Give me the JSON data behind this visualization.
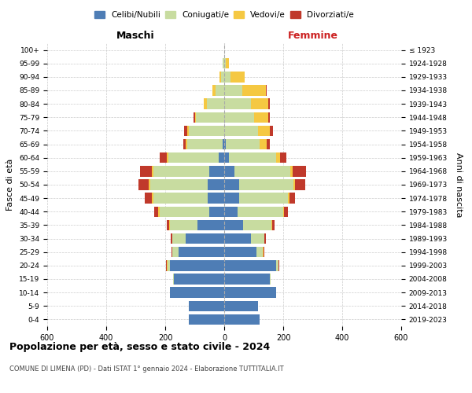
{
  "age_groups": [
    "0-4",
    "5-9",
    "10-14",
    "15-19",
    "20-24",
    "25-29",
    "30-34",
    "35-39",
    "40-44",
    "45-49",
    "50-54",
    "55-59",
    "60-64",
    "65-69",
    "70-74",
    "75-79",
    "80-84",
    "85-89",
    "90-94",
    "95-99",
    "100+"
  ],
  "birth_years": [
    "2019-2023",
    "2014-2018",
    "2009-2013",
    "2004-2008",
    "1999-2003",
    "1994-1998",
    "1989-1993",
    "1984-1988",
    "1979-1983",
    "1974-1978",
    "1969-1973",
    "1964-1968",
    "1959-1963",
    "1954-1958",
    "1949-1953",
    "1944-1948",
    "1939-1943",
    "1934-1938",
    "1929-1933",
    "1924-1928",
    "≤ 1923"
  ],
  "males": {
    "celibi": [
      120,
      120,
      185,
      170,
      185,
      155,
      130,
      90,
      50,
      55,
      55,
      50,
      20,
      5,
      0,
      0,
      0,
      0,
      0,
      0,
      0
    ],
    "coniugati": [
      0,
      0,
      0,
      3,
      8,
      20,
      45,
      95,
      170,
      185,
      195,
      190,
      170,
      120,
      120,
      95,
      60,
      30,
      10,
      5,
      0
    ],
    "vedovi": [
      0,
      0,
      0,
      0,
      2,
      2,
      2,
      3,
      3,
      5,
      5,
      5,
      5,
      5,
      5,
      5,
      10,
      10,
      5,
      0,
      0
    ],
    "divorziati": [
      0,
      0,
      0,
      0,
      2,
      3,
      5,
      8,
      15,
      25,
      35,
      40,
      25,
      10,
      10,
      5,
      0,
      0,
      0,
      0,
      0
    ]
  },
  "females": {
    "nubili": [
      120,
      115,
      175,
      155,
      175,
      110,
      90,
      65,
      45,
      50,
      50,
      35,
      15,
      5,
      0,
      0,
      0,
      0,
      0,
      0,
      0
    ],
    "coniugate": [
      0,
      0,
      0,
      3,
      8,
      20,
      45,
      95,
      155,
      165,
      185,
      190,
      160,
      115,
      115,
      100,
      90,
      60,
      20,
      5,
      0
    ],
    "vedove": [
      0,
      0,
      0,
      0,
      2,
      2,
      2,
      2,
      3,
      5,
      5,
      8,
      15,
      25,
      40,
      50,
      60,
      80,
      50,
      10,
      0
    ],
    "divorziate": [
      0,
      0,
      0,
      0,
      2,
      3,
      3,
      8,
      12,
      20,
      35,
      45,
      20,
      10,
      10,
      5,
      5,
      5,
      0,
      0,
      0
    ]
  },
  "colors": {
    "celibi_nubili": "#4e7db5",
    "coniugati": "#c8dca0",
    "vedovi": "#f5c842",
    "divorziati": "#c0392b"
  },
  "title": "Popolazione per età, sesso e stato civile - 2024",
  "subtitle": "COMUNE DI LIMENA (PD) - Dati ISTAT 1° gennaio 2024 - Elaborazione TUTTITALIA.IT",
  "xlabel_left": "Maschi",
  "xlabel_right": "Femmine",
  "ylabel_left": "Fasce di età",
  "ylabel_right": "Anni di nascita",
  "xlim": 600,
  "legend_labels": [
    "Celibi/Nubili",
    "Coniugati/e",
    "Vedovi/e",
    "Divorziati/e"
  ]
}
